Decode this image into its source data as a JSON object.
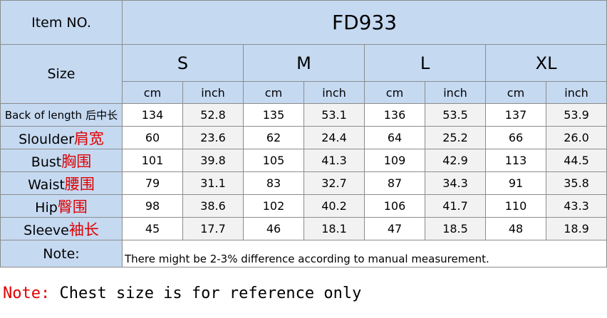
{
  "header": {
    "item_label": "Item NO.",
    "item": "FD933",
    "size_label": "Size",
    "sizes": [
      "S",
      "M",
      "L",
      "XL"
    ],
    "units": [
      "cm",
      "inch"
    ]
  },
  "table": {
    "rows": [
      {
        "label": "Back of length",
        "label_cn": "后中长",
        "values": [
          "134",
          "52.8",
          "135",
          "53.1",
          "136",
          "53.5",
          "137",
          "53.9"
        ]
      },
      {
        "label": "Sloulder",
        "label_cn": "肩宽",
        "values": [
          "60",
          "23.6",
          "62",
          "24.4",
          "64",
          "25.2",
          "66",
          "26.0"
        ]
      },
      {
        "label": "Bust",
        "label_cn": "胸围",
        "values": [
          "101",
          "39.8",
          "105",
          "41.3",
          "109",
          "42.9",
          "113",
          "44.5"
        ]
      },
      {
        "label": "Waist",
        "label_cn": "腰围",
        "values": [
          "79",
          "31.1",
          "83",
          "32.7",
          "87",
          "34.3",
          "91",
          "35.8"
        ]
      },
      {
        "label": "Hip",
        "label_cn": "臀围",
        "values": [
          "98",
          "38.6",
          "102",
          "40.2",
          "106",
          "41.7",
          "110",
          "43.3"
        ]
      },
      {
        "label": "Sleeve",
        "label_cn": "袖长",
        "values": [
          "45",
          "17.7",
          "46",
          "18.1",
          "47",
          "18.5",
          "48",
          "18.9"
        ]
      }
    ],
    "note_label": "Note:",
    "note": "There might be 2-3% difference according to manual measurement."
  },
  "footer": {
    "label": "Note:",
    "text": "Chest size is for reference only"
  }
}
